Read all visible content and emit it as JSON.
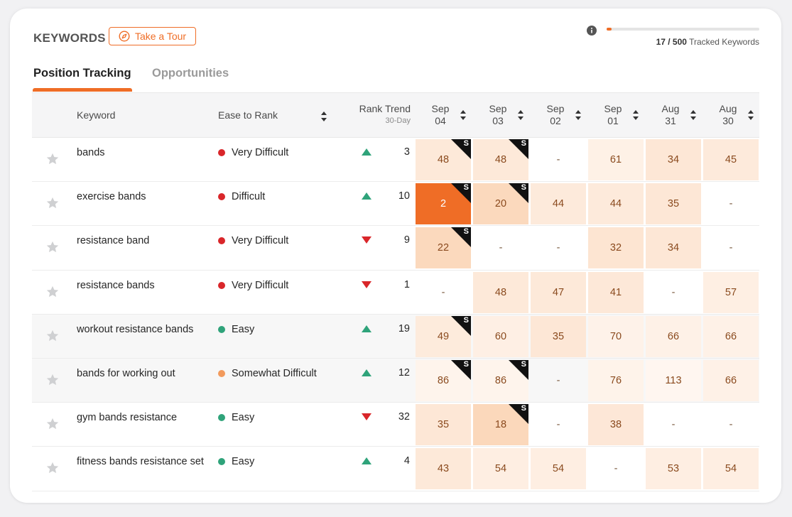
{
  "header": {
    "title": "KEYWORDS",
    "tour_label": "Take a Tour",
    "tracked_count": "17 / 500",
    "tracked_label": "Tracked Keywords",
    "tracked_fraction": 0.034
  },
  "tabs": [
    {
      "label": "Position Tracking",
      "active": true
    },
    {
      "label": "Opportunities",
      "active": false
    }
  ],
  "columns": {
    "keyword": "Keyword",
    "ease": "Ease to Rank",
    "trend": "Rank Trend",
    "trend_sub": "30-Day",
    "dates": [
      {
        "mon": "Sep",
        "day": "04"
      },
      {
        "mon": "Sep",
        "day": "03"
      },
      {
        "mon": "Sep",
        "day": "02"
      },
      {
        "mon": "Sep",
        "day": "01"
      },
      {
        "mon": "Aug",
        "day": "31"
      },
      {
        "mon": "Aug",
        "day": "30"
      }
    ]
  },
  "colors": {
    "accent": "#ef6d26",
    "very_difficult": "#d9262a",
    "difficult": "#d9262a",
    "somewhat_difficult": "#f29a5c",
    "easy": "#2fa37a",
    "trend_up": "#2fa37a",
    "trend_down": "#d9262a"
  },
  "rows": [
    {
      "keyword": "bands",
      "ease": "Very Difficult",
      "ease_color": "#d9262a",
      "trend_dir": "up",
      "trend": "3",
      "cells": [
        {
          "v": "48",
          "s": true,
          "bg": "#fde9d9"
        },
        {
          "v": "48",
          "s": true,
          "bg": "#fde9d9"
        },
        {
          "v": "-",
          "s": false,
          "bg": ""
        },
        {
          "v": "61",
          "s": false,
          "bg": "#fef1e6"
        },
        {
          "v": "34",
          "s": false,
          "bg": "#fde7d6"
        },
        {
          "v": "45",
          "s": false,
          "bg": "#fdeadb"
        }
      ]
    },
    {
      "keyword": "exercise bands",
      "ease": "Difficult",
      "ease_color": "#d9262a",
      "trend_dir": "up",
      "trend": "10",
      "cells": [
        {
          "v": "2",
          "s": true,
          "bg": "#ef6d26",
          "white": true
        },
        {
          "v": "20",
          "s": true,
          "bg": "#fbd9bd"
        },
        {
          "v": "44",
          "s": false,
          "bg": "#fdeadb"
        },
        {
          "v": "44",
          "s": false,
          "bg": "#fdeadb"
        },
        {
          "v": "35",
          "s": false,
          "bg": "#fde7d6"
        },
        {
          "v": "-",
          "s": false,
          "bg": ""
        }
      ]
    },
    {
      "keyword": "resistance band",
      "ease": "Very Difficult",
      "ease_color": "#d9262a",
      "trend_dir": "down",
      "trend": "9",
      "cells": [
        {
          "v": "22",
          "s": true,
          "bg": "#fbd9bd"
        },
        {
          "v": "-",
          "s": false,
          "bg": ""
        },
        {
          "v": "-",
          "s": false,
          "bg": ""
        },
        {
          "v": "32",
          "s": false,
          "bg": "#fde5d2"
        },
        {
          "v": "34",
          "s": false,
          "bg": "#fde7d6"
        },
        {
          "v": "-",
          "s": false,
          "bg": ""
        }
      ]
    },
    {
      "keyword": "resistance bands",
      "ease": "Very Difficult",
      "ease_color": "#d9262a",
      "trend_dir": "down",
      "trend": "1",
      "cells": [
        {
          "v": "-",
          "s": false,
          "bg": ""
        },
        {
          "v": "48",
          "s": false,
          "bg": "#fde9d9"
        },
        {
          "v": "47",
          "s": false,
          "bg": "#fde9d9"
        },
        {
          "v": "41",
          "s": false,
          "bg": "#fde8d8"
        },
        {
          "v": "-",
          "s": false,
          "bg": ""
        },
        {
          "v": "57",
          "s": false,
          "bg": "#feefe3"
        }
      ]
    },
    {
      "keyword": "workout resistance bands",
      "ease": "Easy",
      "ease_color": "#2fa37a",
      "trend_dir": "up",
      "trend": "19",
      "cells": [
        {
          "v": "49",
          "s": true,
          "bg": "#fdebdc"
        },
        {
          "v": "60",
          "s": false,
          "bg": "#feefe4"
        },
        {
          "v": "35",
          "s": false,
          "bg": "#fde7d6"
        },
        {
          "v": "70",
          "s": false,
          "bg": "#fef2e9"
        },
        {
          "v": "66",
          "s": false,
          "bg": "#fef1e7"
        },
        {
          "v": "66",
          "s": false,
          "bg": "#fef1e7"
        }
      ]
    },
    {
      "keyword": "bands for working out",
      "ease": "Somewhat Difficult",
      "ease_color": "#f29a5c",
      "trend_dir": "up",
      "trend": "12",
      "cells": [
        {
          "v": "86",
          "s": true,
          "bg": "#fef4ec"
        },
        {
          "v": "86",
          "s": true,
          "bg": "#fef4ec"
        },
        {
          "v": "-",
          "s": false,
          "bg": ""
        },
        {
          "v": "76",
          "s": false,
          "bg": "#fef3ea"
        },
        {
          "v": "113",
          "s": false,
          "bg": "#fff6f0"
        },
        {
          "v": "66",
          "s": false,
          "bg": "#fef1e7"
        }
      ]
    },
    {
      "keyword": "gym bands resistance",
      "ease": "Easy",
      "ease_color": "#2fa37a",
      "trend_dir": "down",
      "trend": "32",
      "cells": [
        {
          "v": "35",
          "s": false,
          "bg": "#fde7d6"
        },
        {
          "v": "18",
          "s": true,
          "bg": "#fbd8bb"
        },
        {
          "v": "-",
          "s": false,
          "bg": ""
        },
        {
          "v": "38",
          "s": false,
          "bg": "#fde7d7"
        },
        {
          "v": "-",
          "s": false,
          "bg": ""
        },
        {
          "v": "-",
          "s": false,
          "bg": ""
        }
      ]
    },
    {
      "keyword": "fitness bands resistance set",
      "ease": "Easy",
      "ease_color": "#2fa37a",
      "trend_dir": "up",
      "trend": "4",
      "cells": [
        {
          "v": "43",
          "s": false,
          "bg": "#fde9d9"
        },
        {
          "v": "54",
          "s": false,
          "bg": "#feeee2"
        },
        {
          "v": "54",
          "s": false,
          "bg": "#feeee2"
        },
        {
          "v": "-",
          "s": false,
          "bg": ""
        },
        {
          "v": "53",
          "s": false,
          "bg": "#feeee2"
        },
        {
          "v": "54",
          "s": false,
          "bg": "#feeee2"
        }
      ]
    }
  ]
}
